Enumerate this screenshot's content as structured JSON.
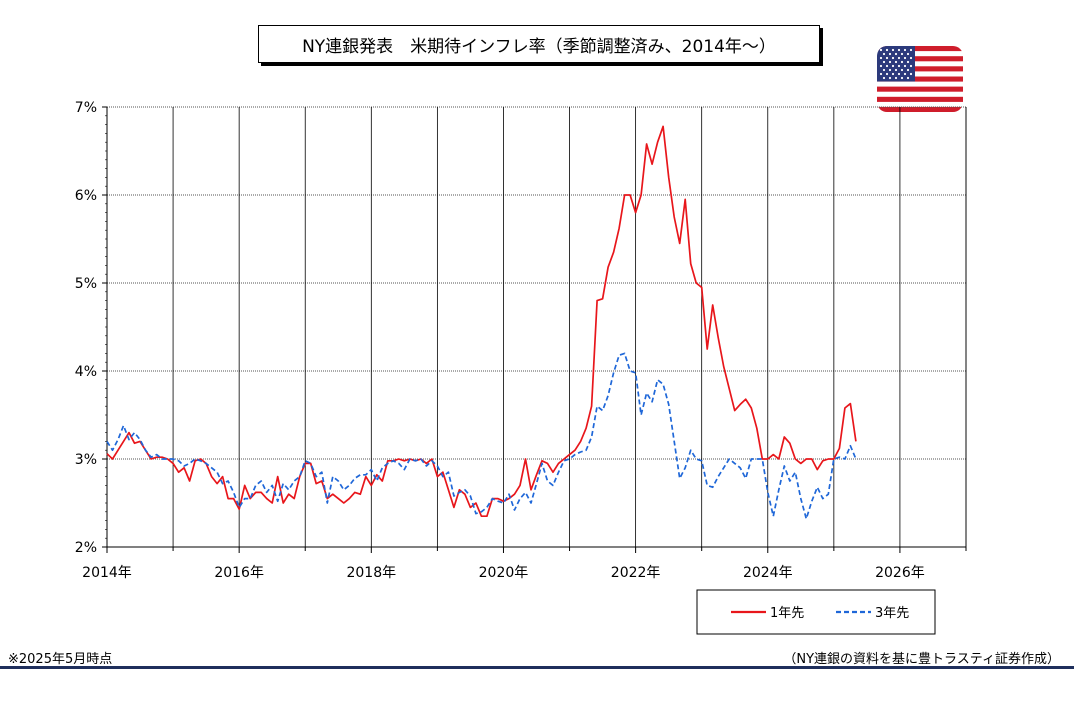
{
  "title": "NY連銀発表　米期待インフレ率（季節調整済み、2014年～）",
  "note_left": "※2025年5月時点",
  "note_right": "（NY連銀の資料を基に豊トラスティ証券作成）",
  "flag": {
    "icon": "us-flag-icon"
  },
  "chart_data": {
    "type": "line",
    "title": "NY連銀発表　米期待インフレ率（季節調整済み、2014年～）",
    "xlabel": "",
    "ylabel": "",
    "xlim": [
      2014,
      2027
    ],
    "ylim": [
      2,
      7
    ],
    "x_ticks": [
      "2014年",
      "2016年",
      "2018年",
      "2020年",
      "2022年",
      "2024年",
      "2026年"
    ],
    "y_ticks": [
      "2%",
      "3%",
      "4%",
      "5%",
      "6%",
      "7%"
    ],
    "grid": true,
    "legend_position": "bottom-right",
    "start": "2014-01",
    "series": [
      {
        "name": "1年先",
        "color": "#e8161b",
        "style": "solid",
        "values": [
          3.06,
          3.0,
          3.1,
          3.2,
          3.3,
          3.18,
          3.2,
          3.1,
          3.0,
          3.02,
          3.02,
          3.0,
          2.95,
          2.85,
          2.9,
          2.75,
          2.98,
          3.0,
          2.95,
          2.8,
          2.72,
          2.8,
          2.55,
          2.55,
          2.43,
          2.7,
          2.55,
          2.62,
          2.62,
          2.55,
          2.5,
          2.8,
          2.5,
          2.6,
          2.55,
          2.8,
          2.95,
          2.95,
          2.72,
          2.75,
          2.55,
          2.6,
          2.55,
          2.5,
          2.55,
          2.62,
          2.6,
          2.8,
          2.7,
          2.82,
          2.75,
          2.98,
          2.98,
          3.0,
          2.98,
          3.0,
          2.98,
          3.0,
          2.95,
          3.0,
          2.8,
          2.85,
          2.65,
          2.45,
          2.65,
          2.6,
          2.45,
          2.5,
          2.35,
          2.35,
          2.55,
          2.55,
          2.52,
          2.55,
          2.6,
          2.7,
          3.0,
          2.65,
          2.82,
          2.98,
          2.95,
          2.85,
          2.95,
          3.0,
          3.05,
          3.1,
          3.2,
          3.35,
          3.6,
          4.8,
          4.82,
          5.18,
          5.35,
          5.62,
          6.0,
          6.0,
          5.8,
          6.0,
          6.58,
          6.35,
          6.6,
          6.78,
          6.2,
          5.75,
          5.45,
          5.95,
          5.22,
          5.0,
          4.95,
          4.25,
          4.75,
          4.38,
          4.05,
          3.8,
          3.55,
          3.62,
          3.68,
          3.58,
          3.35,
          3.0,
          3.0,
          3.05,
          3.0,
          3.25,
          3.18,
          3.0,
          2.95,
          3.0,
          3.0,
          2.88,
          2.98,
          3.0,
          3.0,
          3.12,
          3.58,
          3.63,
          3.2
        ]
      },
      {
        "name": "3年先",
        "color": "#1f67d8",
        "style": "dashed",
        "values": [
          3.2,
          3.1,
          3.22,
          3.38,
          3.22,
          3.3,
          3.22,
          3.1,
          3.02,
          3.05,
          3.0,
          3.0,
          3.0,
          2.98,
          2.92,
          2.95,
          3.0,
          2.98,
          2.95,
          2.9,
          2.85,
          2.72,
          2.75,
          2.62,
          2.45,
          2.55,
          2.55,
          2.7,
          2.75,
          2.62,
          2.7,
          2.52,
          2.72,
          2.65,
          2.75,
          2.8,
          2.98,
          2.95,
          2.8,
          2.85,
          2.5,
          2.8,
          2.75,
          2.65,
          2.7,
          2.78,
          2.82,
          2.82,
          2.88,
          2.75,
          2.9,
          2.95,
          2.98,
          2.95,
          2.88,
          3.0,
          2.98,
          3.0,
          2.92,
          2.98,
          2.92,
          2.8,
          2.85,
          2.58,
          2.62,
          2.65,
          2.58,
          2.38,
          2.4,
          2.45,
          2.55,
          2.52,
          2.5,
          2.6,
          2.42,
          2.55,
          2.62,
          2.5,
          2.72,
          2.95,
          2.75,
          2.7,
          2.85,
          2.98,
          3.0,
          3.05,
          3.08,
          3.1,
          3.25,
          3.6,
          3.55,
          3.72,
          3.98,
          4.18,
          4.2,
          4.0,
          3.98,
          3.5,
          3.75,
          3.65,
          3.9,
          3.85,
          3.62,
          3.2,
          2.78,
          2.9,
          3.1,
          3.0,
          2.98,
          2.7,
          2.68,
          2.8,
          2.9,
          3.0,
          2.95,
          2.9,
          2.78,
          3.0,
          3.0,
          3.0,
          2.62,
          2.35,
          2.65,
          2.92,
          2.75,
          2.85,
          2.55,
          2.32,
          2.52,
          2.68,
          2.55,
          2.6,
          3.0,
          3.02,
          3.0,
          3.15,
          3.0
        ]
      }
    ]
  }
}
